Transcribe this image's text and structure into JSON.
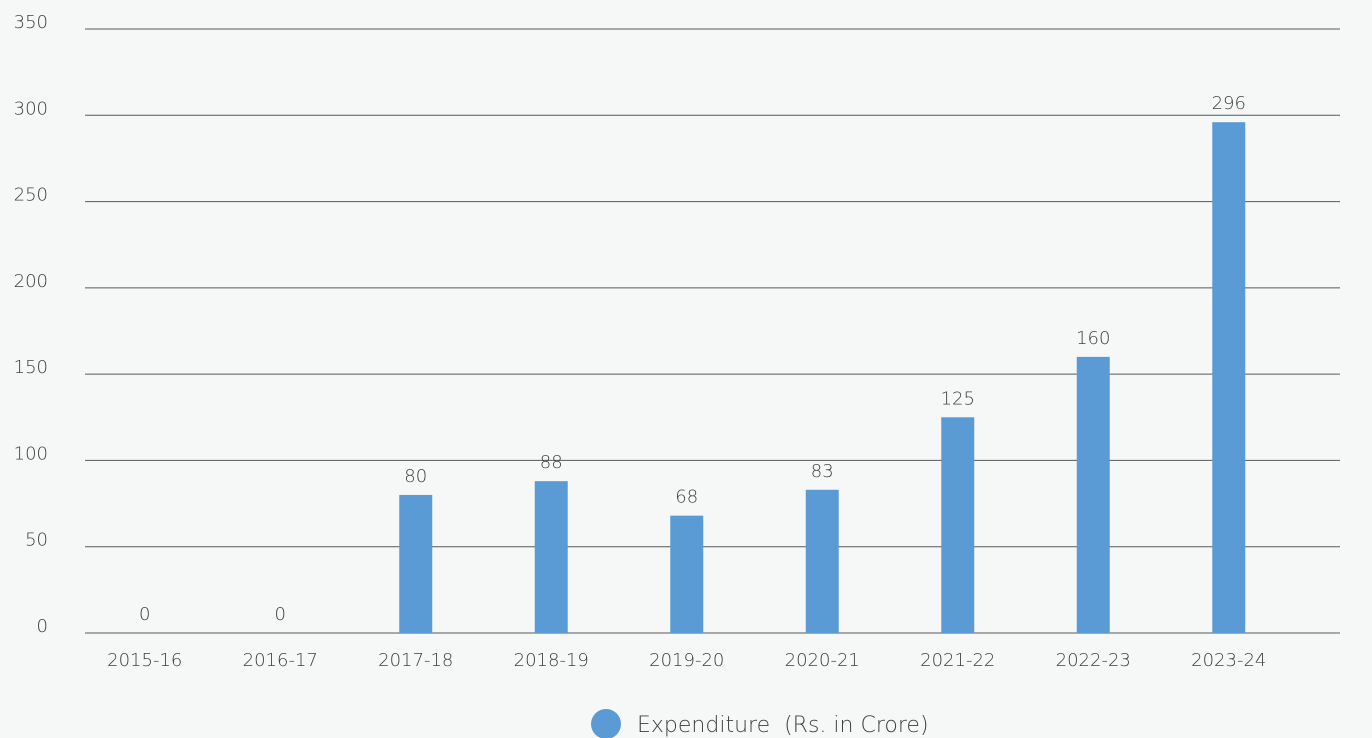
{
  "chart_data": {
    "type": "bar",
    "categories": [
      "2015-16",
      "2016-17",
      "2017-18",
      "2018-19",
      "2019-20",
      "2020-21",
      "2021-22",
      "2022-23",
      "2023-24"
    ],
    "series": [
      {
        "name": "Expenditure  (Rs. in Crore)",
        "color": "#5b9bd5",
        "values": [
          0,
          0,
          80,
          88,
          68,
          83,
          125,
          160,
          296
        ]
      }
    ],
    "ylim": [
      0,
      350
    ],
    "yticks": [
      0,
      50,
      100,
      150,
      200,
      250,
      300,
      350
    ],
    "grid": true,
    "legend": "bottom"
  }
}
